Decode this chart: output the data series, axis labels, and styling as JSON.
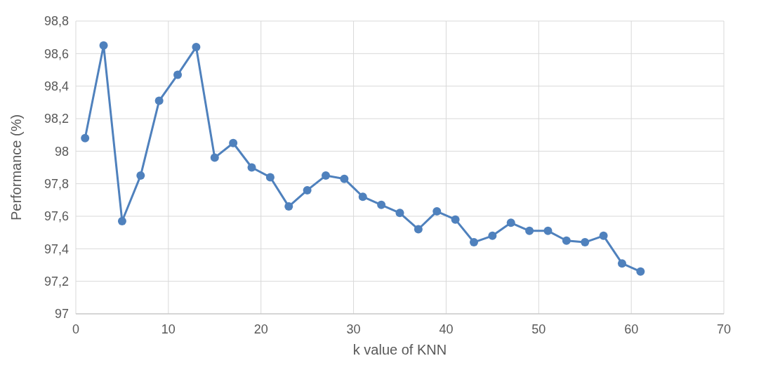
{
  "chart_data": {
    "type": "line",
    "xlabel": "k value of KNN",
    "ylabel": "Performance (%)",
    "x": [
      1,
      3,
      5,
      7,
      9,
      11,
      13,
      15,
      17,
      19,
      21,
      23,
      25,
      27,
      29,
      31,
      33,
      35,
      37,
      39,
      41,
      43,
      45,
      47,
      49,
      51,
      53,
      55,
      57,
      59,
      61
    ],
    "series": [
      {
        "color": "#4f81bd",
        "values": [
          98.08,
          98.65,
          97.57,
          97.85,
          98.31,
          98.47,
          98.64,
          97.96,
          98.05,
          97.9,
          97.84,
          97.66,
          97.76,
          97.85,
          97.83,
          97.72,
          97.67,
          97.62,
          97.52,
          97.63,
          97.58,
          97.44,
          97.48,
          97.56,
          97.51,
          97.51,
          97.45,
          97.44,
          97.48,
          97.31,
          97.26
        ]
      }
    ],
    "xlim": [
      0,
      70
    ],
    "xticks": [
      0,
      10,
      20,
      30,
      40,
      50,
      60,
      70
    ],
    "ylim": [
      97,
      98.8
    ],
    "yticks": [
      97,
      {
        "value": 97.2,
        "label": "97,2"
      },
      {
        "value": 97.4,
        "label": "97,4"
      },
      {
        "value": 97.6,
        "label": "97,6"
      },
      {
        "value": 97.8,
        "label": "97,8"
      },
      98,
      {
        "value": 98.2,
        "label": "98,2"
      },
      {
        "value": 98.4,
        "label": "98,4"
      },
      {
        "value": 98.6,
        "label": "98,6"
      },
      {
        "value": 98.8,
        "label": "98,8"
      }
    ],
    "grid": true,
    "marker": "circle",
    "line_style": "solid"
  }
}
